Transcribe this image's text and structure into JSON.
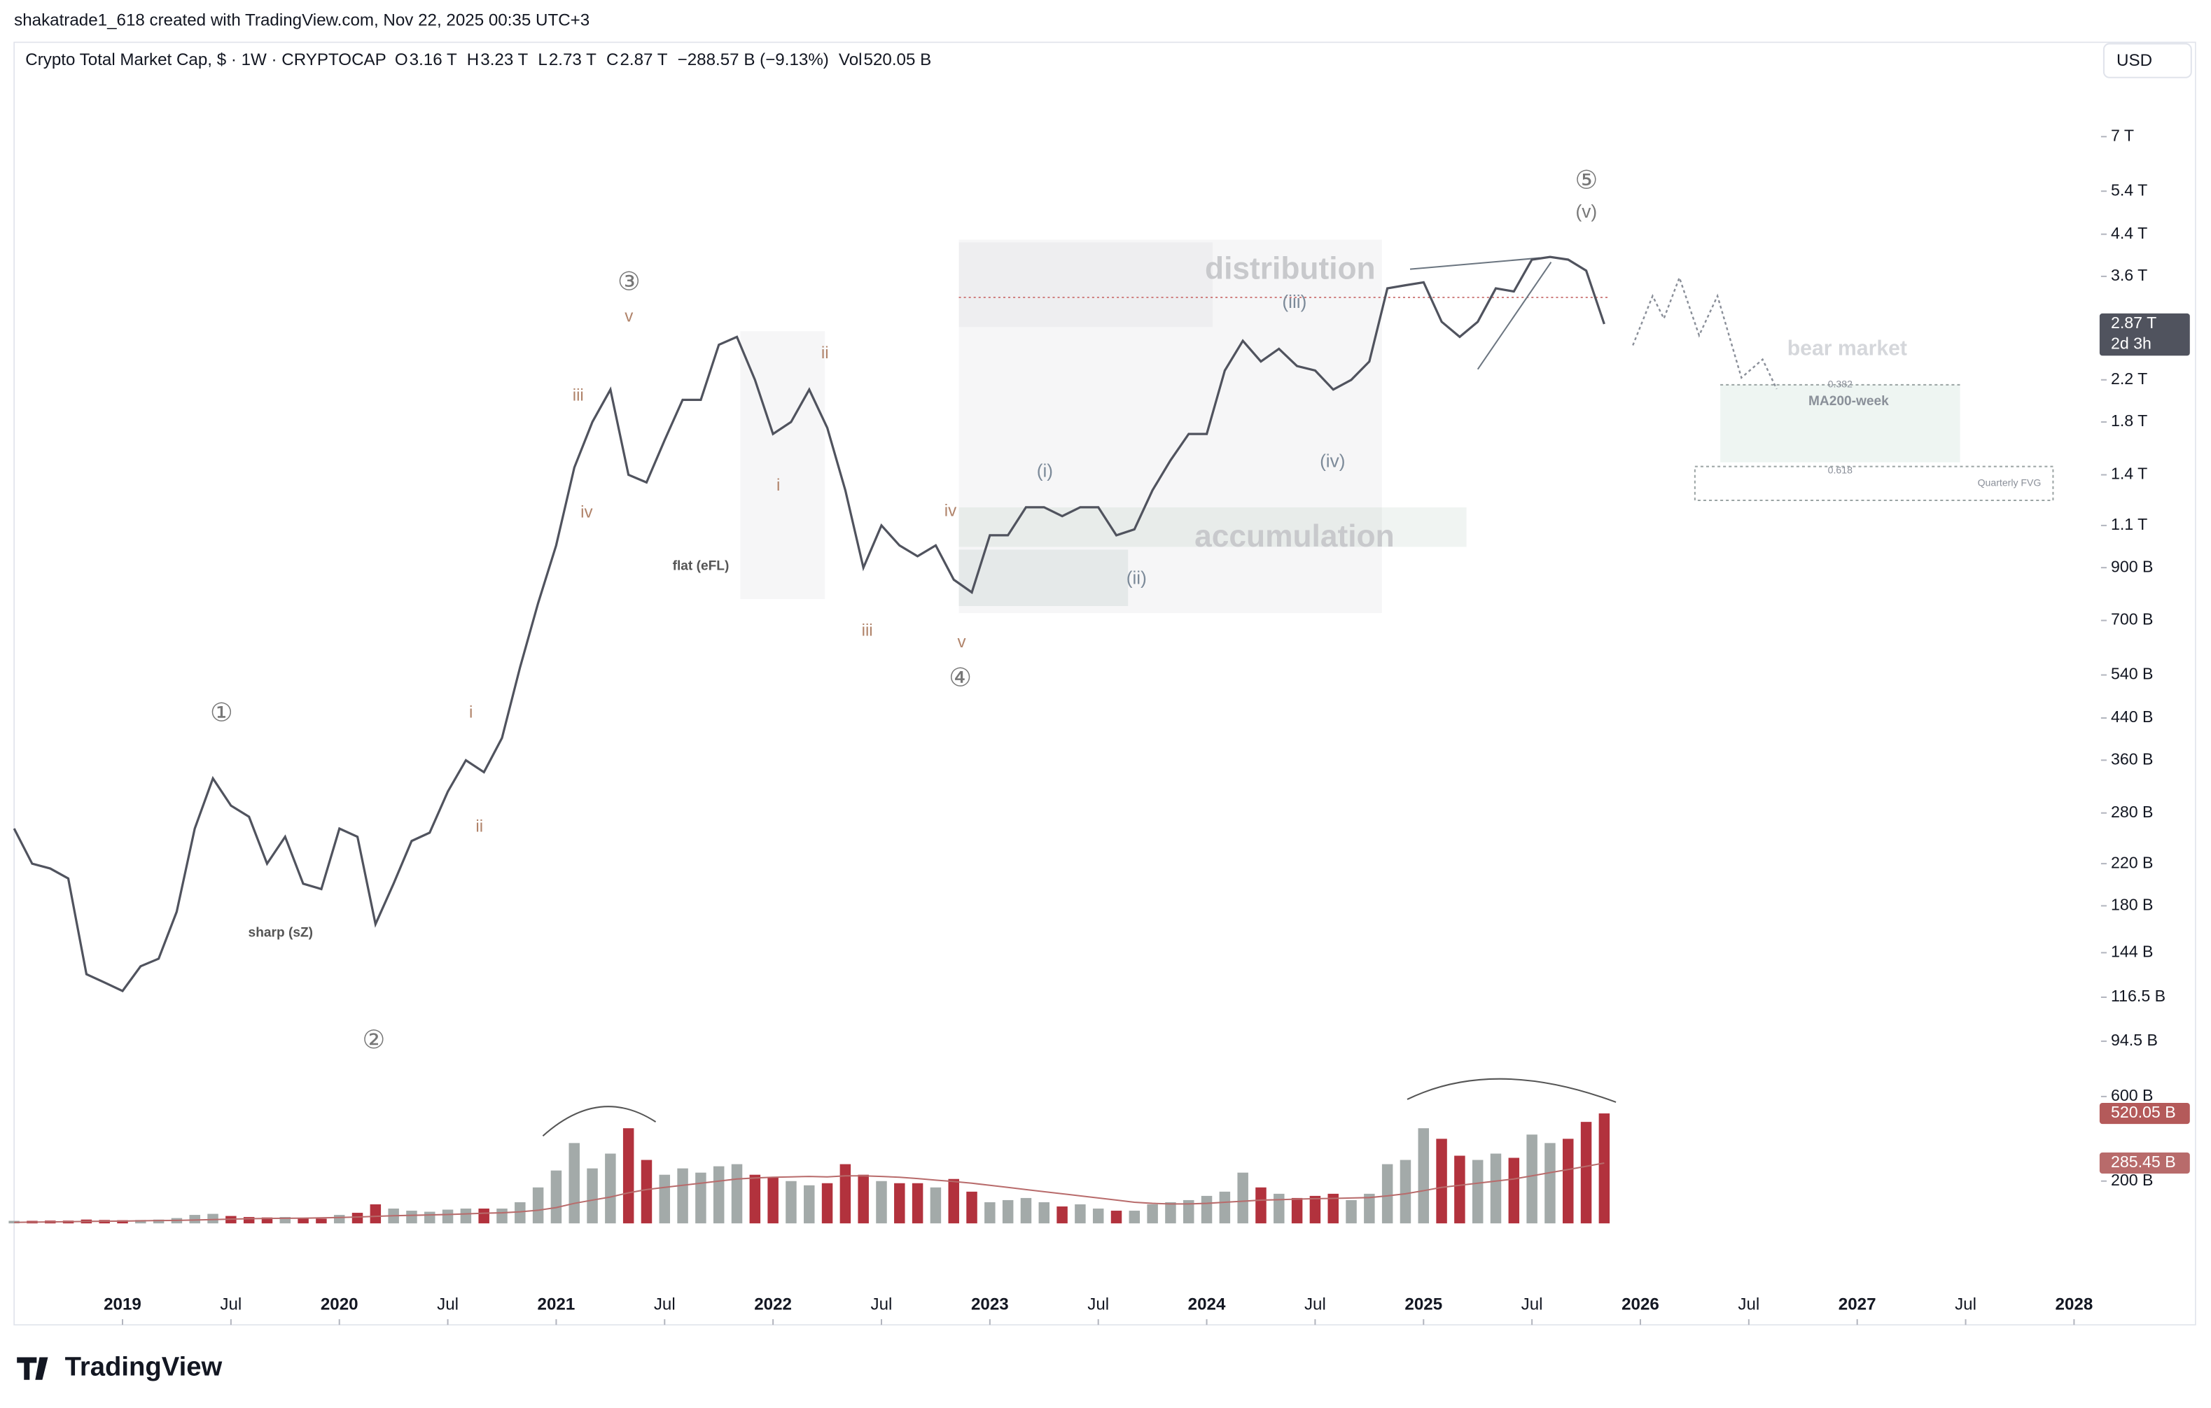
{
  "chart_data": {
    "type": "line",
    "credit": "shakatrade1_618 created with TradingView.com, Nov 22, 2025 00:35 UTC+3",
    "title": "Crypto Total Market Cap, $ · 1W · CRYPTOCAP",
    "header_values": [
      {
        "key": "O",
        "text": "3.16 T"
      },
      {
        "key": "H",
        "text": "3.23 T"
      },
      {
        "key": "L",
        "text": "2.73 T"
      },
      {
        "key": "C",
        "text": "2.87 T"
      },
      {
        "key": "",
        "text": "−288.57 B (−9.13%)"
      },
      {
        "key": "Vol",
        "text": "520.05 B"
      }
    ],
    "currency": "USD",
    "brand": "TradingView",
    "log_scale": true,
    "x": [
      "2018-07",
      "2018-08",
      "2018-09",
      "2018-10",
      "2018-11",
      "2018-12",
      "2019-01",
      "2019-02",
      "2019-03",
      "2019-04",
      "2019-05",
      "2019-06",
      "2019-07",
      "2019-08",
      "2019-09",
      "2019-10",
      "2019-11",
      "2019-12",
      "2020-01",
      "2020-02",
      "2020-03",
      "2020-04",
      "2020-05",
      "2020-06",
      "2020-07",
      "2020-08",
      "2020-09",
      "2020-10",
      "2020-11",
      "2020-12",
      "2021-01",
      "2021-02",
      "2021-03",
      "2021-04",
      "2021-05",
      "2021-06",
      "2021-07",
      "2021-08",
      "2021-09",
      "2021-10",
      "2021-11",
      "2021-12",
      "2022-01",
      "2022-02",
      "2022-03",
      "2022-04",
      "2022-05",
      "2022-06",
      "2022-07",
      "2022-08",
      "2022-09",
      "2022-10",
      "2022-11",
      "2022-12",
      "2023-01",
      "2023-02",
      "2023-03",
      "2023-04",
      "2023-05",
      "2023-06",
      "2023-07",
      "2023-08",
      "2023-09",
      "2023-10",
      "2023-11",
      "2023-12",
      "2024-01",
      "2024-02",
      "2024-03",
      "2024-04",
      "2024-05",
      "2024-06",
      "2024-07",
      "2024-08",
      "2024-09",
      "2024-10",
      "2024-11",
      "2024-12",
      "2025-01",
      "2025-02",
      "2025-03",
      "2025-04",
      "2025-05",
      "2025-06",
      "2025-07",
      "2025-08",
      "2025-09",
      "2025-10",
      "2025-11"
    ],
    "series": [
      {
        "color": "#50535e",
        "values": [
          260,
          220,
          215,
          205,
          130,
          125,
          120,
          135,
          140,
          175,
          260,
          330,
          290,
          275,
          220,
          250,
          200,
          195,
          260,
          250,
          165,
          200,
          245,
          255,
          310,
          360,
          340,
          400,
          560,
          760,
          1000,
          1450,
          1800,
          2100,
          1400,
          1350,
          1650,
          2000,
          2000,
          2600,
          2700,
          2200,
          1700,
          1800,
          2100,
          1750,
          1300,
          900,
          1100,
          1000,
          950,
          1000,
          850,
          800,
          1050,
          1050,
          1200,
          1200,
          1150,
          1200,
          1200,
          1050,
          1080,
          1300,
          1500,
          1700,
          1700,
          2300,
          2650,
          2400,
          2550,
          2350,
          2300,
          2100,
          2200,
          2400,
          3400,
          3450,
          3500,
          2900,
          2700,
          2900,
          3400,
          3350,
          3900,
          3950,
          3900,
          3700,
          2870
        ]
      },
      {
        "type": "bar",
        "axis": "y2",
        "color": "#a3aaa9",
        "down_color": "#b2323d",
        "values": [
          12,
          12,
          13,
          13,
          18,
          16,
          15,
          16,
          18,
          25,
          40,
          45,
          35,
          30,
          28,
          30,
          25,
          22,
          40,
          50,
          90,
          70,
          60,
          55,
          65,
          70,
          70,
          70,
          100,
          170,
          250,
          380,
          260,
          330,
          450,
          300,
          230,
          260,
          240,
          270,
          280,
          230,
          220,
          200,
          180,
          190,
          280,
          230,
          200,
          190,
          190,
          170,
          210,
          150,
          100,
          110,
          120,
          100,
          80,
          90,
          70,
          60,
          60,
          90,
          100,
          110,
          130,
          150,
          240,
          170,
          140,
          120,
          130,
          140,
          110,
          140,
          280,
          300,
          450,
          400,
          320,
          300,
          330,
          310,
          420,
          380,
          400,
          480,
          520.05
        ]
      },
      {
        "type": "line",
        "axis": "y2",
        "color": "#b86b6b",
        "values": [
          5,
          6,
          7,
          8,
          9,
          10,
          11,
          12,
          13,
          14,
          16,
          18,
          20,
          22,
          23,
          24,
          25,
          26,
          28,
          30,
          33,
          36,
          38,
          40,
          42,
          45,
          48,
          50,
          55,
          62,
          75,
          95,
          110,
          125,
          145,
          160,
          170,
          180,
          190,
          200,
          210,
          215,
          218,
          220,
          222,
          220,
          225,
          225,
          222,
          218,
          212,
          205,
          198,
          190,
          180,
          170,
          160,
          150,
          140,
          130,
          120,
          110,
          100,
          95,
          92,
          92,
          95,
          100,
          105,
          110,
          112,
          115,
          117,
          118,
          120,
          122,
          130,
          140,
          155,
          170,
          180,
          190,
          200,
          210,
          225,
          240,
          255,
          270,
          285.45
        ]
      }
    ],
    "value_tags": [
      "2.87 T",
      "520.05 B",
      "285.45 B"
    ],
    "countdown": "2d 3h",
    "xlim": [
      "2018-07",
      "2028-02"
    ],
    "xticks": [
      {
        "value": "2019-01",
        "label": "2019"
      },
      {
        "value": "2019-07",
        "label": "Jul"
      },
      {
        "value": "2020-01",
        "label": "2020"
      },
      {
        "value": "2020-07",
        "label": "Jul"
      },
      {
        "value": "2021-01",
        "label": "2021"
      },
      {
        "value": "2021-07",
        "label": "Jul"
      },
      {
        "value": "2022-01",
        "label": "2022"
      },
      {
        "value": "2022-07",
        "label": "Jul"
      },
      {
        "value": "2023-01",
        "label": "2023"
      },
      {
        "value": "2023-07",
        "label": "Jul"
      },
      {
        "value": "2024-01",
        "label": "2024"
      },
      {
        "value": "2024-07",
        "label": "Jul"
      },
      {
        "value": "2025-01",
        "label": "2025"
      },
      {
        "value": "2025-07",
        "label": "Jul"
      },
      {
        "value": "2026-01",
        "label": "2026"
      },
      {
        "value": "2026-07",
        "label": "Jul"
      },
      {
        "value": "2027-01",
        "label": "2027"
      },
      {
        "value": "2027-07",
        "label": "Jul"
      },
      {
        "value": "2028-01",
        "label": "2028"
      }
    ],
    "ylim": [
      24.5,
      10120
    ],
    "yticks": [
      {
        "value": 7000,
        "label": "7 T"
      },
      {
        "value": 5400,
        "label": "5.4 T"
      },
      {
        "value": 4400,
        "label": "4.4 T"
      },
      {
        "value": 3600,
        "label": "3.6 T"
      },
      {
        "value": 2200,
        "label": "2.2 T"
      },
      {
        "value": 1800,
        "label": "1.8 T"
      },
      {
        "value": 1400,
        "label": "1.4 T"
      },
      {
        "value": 1100,
        "label": "1.1 T"
      },
      {
        "value": 900,
        "label": "900 B"
      },
      {
        "value": 700,
        "label": "700 B"
      },
      {
        "value": 540,
        "label": "540 B"
      },
      {
        "value": 440,
        "label": "440 B"
      },
      {
        "value": 360,
        "label": "360 B"
      },
      {
        "value": 280,
        "label": "280 B"
      },
      {
        "value": 220,
        "label": "220 B"
      },
      {
        "value": 180,
        "label": "180 B"
      },
      {
        "value": 144,
        "label": "144 B"
      },
      {
        "value": 116.5,
        "label": "116.5 B"
      },
      {
        "value": 94.5,
        "label": "94.5 B"
      }
    ],
    "y2lim": [
      0,
      600
    ],
    "y2ticks": [
      {
        "value": 200,
        "label": "200 B"
      },
      {
        "value": 600,
        "label": "600 B"
      }
    ],
    "annotations": [
      "①",
      "②",
      "③",
      "④",
      "⑤",
      "(v)",
      "v",
      "iii",
      "iv",
      "i",
      "ii",
      "ii",
      "i",
      "iii",
      "iv",
      "v",
      "(i)",
      "(ii)",
      "(iii)",
      "(iv)",
      "distribution",
      "accumulation",
      "flat (eFL)",
      "sharp (sZ)",
      "bear market",
      "0.382",
      "MA200-week",
      "0.618",
      "Quarterly FVG"
    ]
  }
}
